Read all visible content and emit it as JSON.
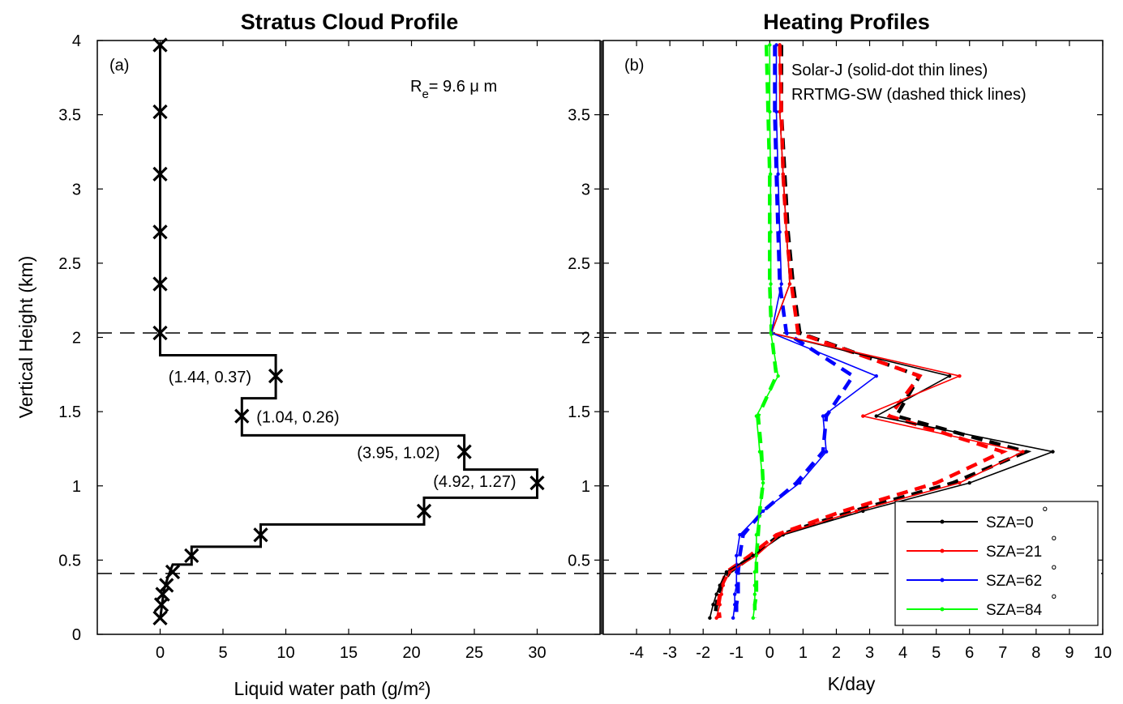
{
  "chart_data": [
    {
      "type": "line",
      "title": "Stratus Cloud Profile",
      "panel_label": "(a)",
      "xlabel": "Liquid water path (g/m²)",
      "ylabel": "Vertical Height (km)",
      "xlim": [
        -5,
        35
      ],
      "ylim": [
        0,
        4
      ],
      "xticks": [
        0,
        5,
        10,
        15,
        20,
        25,
        30
      ],
      "yticks": [
        0,
        0.5,
        1,
        1.5,
        2,
        2.5,
        3,
        3.5,
        4
      ],
      "ytick_labels": [
        "0",
        "0.5",
        "1",
        "1.5",
        "2",
        "2.5",
        "3",
        "3.5",
        "4"
      ],
      "re_label": "R",
      "re_sub": "e",
      "re_value": "= 9.6   μ m",
      "step_profile": {
        "x": [
          0,
          0,
          9.2,
          9.2,
          6.5,
          6.5,
          24.2,
          24.2,
          30,
          30,
          21,
          21,
          8,
          8,
          2.5,
          2.5,
          1,
          0.6,
          0.3,
          0.15,
          0
        ],
        "y": [
          3.97,
          1.88,
          1.88,
          1.59,
          1.59,
          1.34,
          1.34,
          1.11,
          1.11,
          0.92,
          0.92,
          0.74,
          0.74,
          0.59,
          0.59,
          0.47,
          0.47,
          0.38,
          0.3,
          0.2,
          0.1
        ]
      },
      "markers": {
        "x": [
          0,
          0,
          0,
          0,
          0,
          0,
          9.2,
          6.5,
          24.2,
          30,
          21,
          8,
          2.5,
          1,
          0.5,
          0.2,
          0.1,
          0
        ],
        "y": [
          3.97,
          3.52,
          3.1,
          2.71,
          2.36,
          2.03,
          1.74,
          1.47,
          1.23,
          1.02,
          0.83,
          0.67,
          0.53,
          0.42,
          0.33,
          0.27,
          0.2,
          0.11
        ]
      },
      "point_labels": [
        {
          "text": "(1.44, 0.37)",
          "x": 9.2,
          "y": 1.74
        },
        {
          "text": "(1.04, 0.26)",
          "x": 6.5,
          "y": 1.47
        },
        {
          "text": "(3.95, 1.02)",
          "x": 24.2,
          "y": 1.23
        },
        {
          "text": "(4.92, 1.27)",
          "x": 30,
          "y": 1.02
        }
      ],
      "hlines": [
        2.03,
        0.41
      ]
    },
    {
      "type": "line",
      "title": "Heating Profiles",
      "panel_label": "(b)",
      "xlabel": "K/day",
      "ylabel": "",
      "xlim": [
        -5,
        10
      ],
      "ylim": [
        0,
        4
      ],
      "xticks": [
        -4,
        -3,
        -2,
        -1,
        0,
        1,
        2,
        3,
        4,
        5,
        6,
        7,
        8,
        9,
        10
      ],
      "yticks": [
        0.5,
        1,
        1.5,
        2,
        2.5,
        3,
        3.5
      ],
      "ytick_labels": [
        "0.5",
        "1",
        "1.5",
        "2",
        "2.5",
        "3",
        "3.5"
      ],
      "annotation_lines": [
        "Solar-J (solid-dot thin lines)",
        "RRTMG-SW (dashed thick lines)"
      ],
      "hlines": [
        2.03,
        0.41
      ],
      "series": [
        {
          "name": "SZA=0",
          "color": "#000000",
          "solarj": {
            "y": [
              3.97,
              3.52,
              3.1,
              2.71,
              2.36,
              2.03,
              1.74,
              1.47,
              1.23,
              1.02,
              0.83,
              0.67,
              0.53,
              0.42,
              0.33,
              0.27,
              0.2,
              0.11
            ],
            "x": [
              0.3,
              0.3,
              0.4,
              0.5,
              0.6,
              0.05,
              5.4,
              3.2,
              8.5,
              6.0,
              2.8,
              0.4,
              -0.5,
              -1.3,
              -1.5,
              -1.6,
              -1.7,
              -1.8
            ]
          },
          "rrtmg": {
            "y": [
              3.97,
              3.52,
              3.1,
              2.71,
              2.36,
              2.03,
              1.74,
              1.47,
              1.23,
              1.02,
              0.83,
              0.67,
              0.53,
              0.42,
              0.33,
              0.27,
              0.2,
              0.11
            ],
            "x": [
              0.35,
              0.35,
              0.45,
              0.55,
              0.7,
              0.9,
              4.5,
              3.8,
              7.7,
              5.5,
              2.5,
              0.3,
              -0.5,
              -1.2,
              -1.45,
              -1.55,
              -1.6,
              -1.65
            ]
          }
        },
        {
          "name": "SZA=21",
          "color": "#ff0000",
          "solarj": {
            "y": [
              3.97,
              3.52,
              3.1,
              2.71,
              2.36,
              2.03,
              1.74,
              1.47,
              1.23,
              1.02,
              0.83,
              0.67,
              0.53,
              0.42,
              0.33,
              0.27,
              0.2,
              0.11
            ],
            "x": [
              0.3,
              0.3,
              0.4,
              0.5,
              0.6,
              0.05,
              5.7,
              2.8,
              7.6,
              5.7,
              2.6,
              0.3,
              -0.4,
              -1.2,
              -1.4,
              -1.45,
              -1.5,
              -1.6
            ]
          },
          "rrtmg": {
            "y": [
              3.97,
              3.52,
              3.1,
              2.71,
              2.36,
              2.03,
              1.74,
              1.47,
              1.23,
              1.02,
              0.83,
              0.67,
              0.53,
              0.42,
              0.33,
              0.27,
              0.2,
              0.11
            ],
            "x": [
              0.3,
              0.35,
              0.4,
              0.5,
              0.65,
              0.85,
              4.5,
              3.6,
              7.0,
              5.0,
              2.2,
              0.2,
              -0.6,
              -1.3,
              -1.45,
              -1.5,
              -1.55,
              -1.5
            ]
          }
        },
        {
          "name": "SZA=62",
          "color": "#0000ff",
          "solarj": {
            "y": [
              3.97,
              3.52,
              3.1,
              2.71,
              2.36,
              2.03,
              1.74,
              1.47,
              1.23,
              1.02,
              0.83,
              0.67,
              0.53,
              0.42,
              0.33,
              0.27,
              0.2,
              0.11
            ],
            "x": [
              0.2,
              0.2,
              0.25,
              0.3,
              0.35,
              0.05,
              3.2,
              1.6,
              1.7,
              0.9,
              -0.2,
              -0.9,
              -1.0,
              -1.0,
              -1.0,
              -1.05,
              -1.05,
              -1.1
            ]
          },
          "rrtmg": {
            "y": [
              3.97,
              3.52,
              3.1,
              2.71,
              2.36,
              2.03,
              1.74,
              1.47,
              1.23,
              1.02,
              0.83,
              0.67,
              0.53,
              0.42,
              0.33,
              0.27,
              0.2,
              0.11
            ],
            "x": [
              0.15,
              0.15,
              0.2,
              0.25,
              0.3,
              0.5,
              2.5,
              1.7,
              1.6,
              0.8,
              -0.2,
              -0.8,
              -0.9,
              -0.95,
              -0.95,
              -0.95,
              -1.0,
              -1.0
            ]
          }
        },
        {
          "name": "SZA=84",
          "color": "#00ff00",
          "solarj": {
            "y": [
              3.97,
              3.52,
              3.1,
              2.71,
              2.36,
              2.03,
              1.74,
              1.47,
              1.23,
              1.02,
              0.83,
              0.67,
              0.53,
              0.42,
              0.33,
              0.27,
              0.2,
              0.11
            ],
            "x": [
              0.0,
              0.0,
              0.02,
              0.03,
              0.03,
              0.03,
              0.25,
              -0.4,
              -0.3,
              -0.2,
              -0.3,
              -0.4,
              -0.4,
              -0.45,
              -0.45,
              -0.45,
              -0.45,
              -0.5
            ]
          },
          "rrtmg": {
            "y": [
              3.97,
              3.52,
              3.1,
              2.71,
              2.36,
              2.03,
              1.74,
              1.47,
              1.23,
              1.02,
              0.83,
              0.67,
              0.53,
              0.42,
              0.33,
              0.27,
              0.2,
              0.11
            ],
            "x": [
              -0.1,
              -0.05,
              0.0,
              0.0,
              0.0,
              0.05,
              0.2,
              -0.35,
              -0.25,
              -0.2,
              -0.3,
              -0.35,
              -0.4,
              -0.4,
              -0.4,
              -0.4,
              -0.45,
              -0.45
            ]
          }
        }
      ],
      "legend": {
        "placement": "bottom-right",
        "entries": [
          {
            "label": "SZA=0",
            "degree": "°",
            "color": "#000000"
          },
          {
            "label": "SZA=21",
            "degree": "°",
            "color": "#ff0000"
          },
          {
            "label": "SZA=62",
            "degree": "°",
            "color": "#0000ff"
          },
          {
            "label": "SZA=84",
            "degree": "°",
            "color": "#00ff00"
          }
        ]
      }
    }
  ]
}
